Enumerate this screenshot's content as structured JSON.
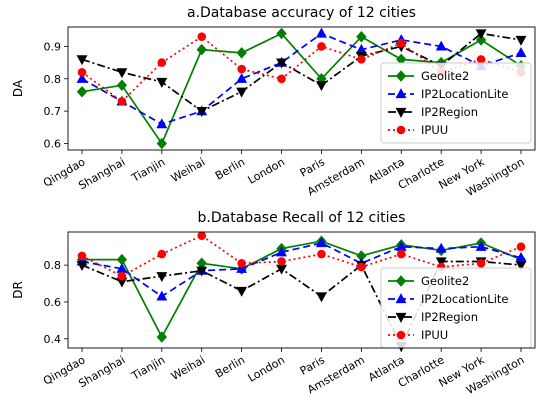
{
  "chart_data": [
    {
      "type": "line",
      "title": "a.Database accuracy of 12 cities",
      "xlabel": "",
      "ylabel": "DA",
      "categories": [
        "Qingdao",
        "Shanghai",
        "Tianjin",
        "Weihai",
        "Berlin",
        "London",
        "Paris",
        "Amsterdam",
        "Atlanta",
        "Charlotte",
        "New York",
        "Washington"
      ],
      "ylim": [
        0.58,
        0.96
      ],
      "yticks": [
        0.6,
        0.7,
        0.8,
        0.9
      ],
      "grid": false,
      "legend_position": "lower-right",
      "series": [
        {
          "name": "Geolite2",
          "color": "#008000",
          "linestyle": "solid",
          "marker": "diamond",
          "values": [
            0.76,
            0.78,
            0.6,
            0.89,
            0.88,
            0.94,
            0.8,
            0.93,
            0.86,
            0.85,
            0.92,
            0.84
          ]
        },
        {
          "name": "IP2LocationLite",
          "color": "#0000ff",
          "linestyle": "dashed",
          "marker": "triangle-up",
          "values": [
            0.8,
            0.73,
            0.66,
            0.7,
            0.8,
            0.85,
            0.94,
            0.89,
            0.92,
            0.9,
            0.84,
            0.88
          ]
        },
        {
          "name": "IP2Region",
          "color": "#000000",
          "linestyle": "dashdot",
          "marker": "triangle-down",
          "values": [
            0.86,
            0.82,
            0.79,
            0.7,
            0.76,
            0.85,
            0.78,
            0.87,
            0.9,
            0.84,
            0.94,
            0.92
          ]
        },
        {
          "name": "IPUU",
          "color": "#ff0000",
          "linestyle": "dotted",
          "marker": "circle",
          "values": [
            0.82,
            0.73,
            0.85,
            0.93,
            0.83,
            0.8,
            0.9,
            0.86,
            0.91,
            0.82,
            0.86,
            0.82
          ]
        }
      ]
    },
    {
      "type": "line",
      "title": "b.Database Recall of 12 cities",
      "xlabel": "",
      "ylabel": "DR",
      "categories": [
        "Qingdao",
        "Shanghai",
        "Tianjin",
        "Weihai",
        "Berlin",
        "London",
        "Paris",
        "Amsterdam",
        "Atlanta",
        "Charlotte",
        "New York",
        "Washington"
      ],
      "ylim": [
        0.35,
        0.98
      ],
      "yticks": [
        0.4,
        0.6,
        0.8
      ],
      "grid": false,
      "legend_position": "lower-right",
      "series": [
        {
          "name": "Geolite2",
          "color": "#008000",
          "linestyle": "solid",
          "marker": "diamond",
          "values": [
            0.83,
            0.83,
            0.41,
            0.81,
            0.78,
            0.89,
            0.93,
            0.85,
            0.91,
            0.88,
            0.92,
            0.83
          ]
        },
        {
          "name": "IP2LocationLite",
          "color": "#0000ff",
          "linestyle": "dashed",
          "marker": "triangle-up",
          "values": [
            0.82,
            0.78,
            0.63,
            0.77,
            0.78,
            0.87,
            0.92,
            0.81,
            0.9,
            0.89,
            0.9,
            0.84
          ]
        },
        {
          "name": "IP2Region",
          "color": "#000000",
          "linestyle": "dashdot",
          "marker": "triangle-down",
          "values": [
            0.8,
            0.71,
            0.74,
            0.77,
            0.66,
            0.78,
            0.63,
            0.8,
            0.36,
            0.82,
            0.82,
            0.8
          ]
        },
        {
          "name": "IPUU",
          "color": "#ff0000",
          "linestyle": "dotted",
          "marker": "circle",
          "values": [
            0.85,
            0.74,
            0.86,
            0.96,
            0.81,
            0.82,
            0.86,
            0.79,
            0.86,
            0.79,
            0.81,
            0.9
          ]
        }
      ]
    }
  ]
}
